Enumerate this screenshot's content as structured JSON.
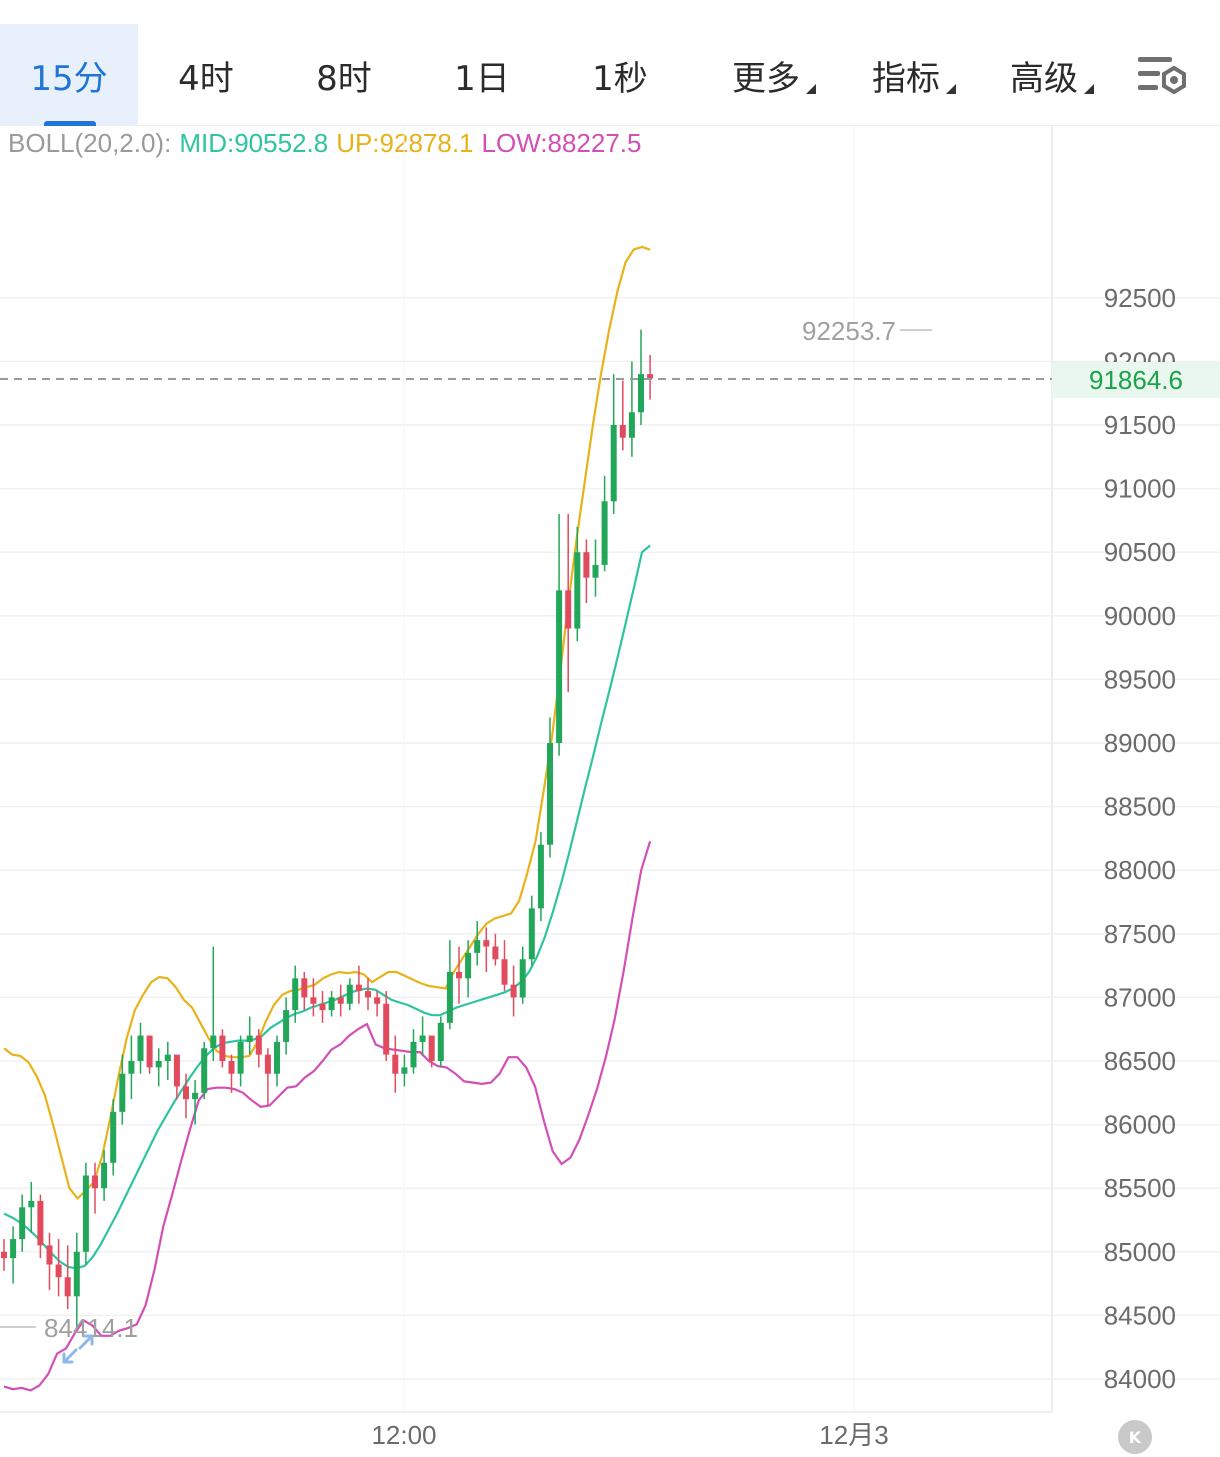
{
  "toolbar": {
    "tabs": [
      {
        "label": "15分",
        "active": true
      },
      {
        "label": "4时",
        "active": false
      },
      {
        "label": "8时",
        "active": false
      },
      {
        "label": "1日",
        "active": false
      },
      {
        "label": "1秒",
        "active": false
      },
      {
        "label": "更多",
        "active": false,
        "dropdown": true
      },
      {
        "label": "指标",
        "active": false,
        "dropdown": true
      },
      {
        "label": "高级",
        "active": false,
        "dropdown": true
      }
    ],
    "settings_icon": "chart-settings-icon"
  },
  "indicator": {
    "name": "BOLL(20,2.0):",
    "mid": "MID:90552.8",
    "up": "UP:92878.1",
    "low": "LOW:88227.5"
  },
  "current_price": "91864.6",
  "high_label": "92253.7",
  "low_label": "84414.1",
  "colors": {
    "up": "#22a65a",
    "down": "#e24a5d",
    "mid": "#2ec4a0",
    "upper": "#e8b21a",
    "lower": "#d24fb5",
    "accent": "#1f74d8"
  },
  "chart_data": {
    "type": "candlestick",
    "ylim": [
      83700,
      94000
    ],
    "y_ticks": [
      "84000",
      "84500",
      "85000",
      "85500",
      "86000",
      "86500",
      "87000",
      "87500",
      "88000",
      "88500",
      "89000",
      "89500",
      "90000",
      "90500",
      "91000",
      "91500",
      "92000",
      "92500"
    ],
    "x_ticks": [
      "12:00",
      "12月3"
    ],
    "series": [
      {
        "name": "MID",
        "values": [
          85300,
          85270,
          85230,
          85180,
          85120,
          85050,
          84980,
          84920,
          84880,
          84870,
          84890,
          84960,
          85060,
          85180,
          85300,
          85430,
          85560,
          85690,
          85820,
          85950,
          86060,
          86170,
          86270,
          86370,
          86460,
          86540,
          86600,
          86640,
          86650,
          86660,
          86660,
          86670,
          86700,
          86760,
          86800,
          86840,
          86870,
          86890,
          86920,
          86940,
          86960,
          86980,
          87010,
          87040,
          87060,
          87070,
          87060,
          87020,
          86980,
          86960,
          86940,
          86910,
          86880,
          86860,
          86860,
          86890,
          86920,
          86940,
          86960,
          86980,
          87000,
          87020,
          87040,
          87070,
          87120,
          87200,
          87320,
          87480,
          87680,
          87900,
          88140,
          88400,
          88660,
          88910,
          89170,
          89420,
          89680,
          89950,
          90220,
          90500,
          90552.8
        ]
      },
      {
        "name": "UP",
        "values": [
          86600,
          86550,
          86540,
          86490,
          86380,
          86230,
          86000,
          85750,
          85500,
          85420,
          85480,
          85550,
          85750,
          86050,
          86380,
          86680,
          86900,
          87020,
          87120,
          87160,
          87150,
          87080,
          86980,
          86920,
          86800,
          86680,
          86580,
          86540,
          86530,
          86530,
          86540,
          86650,
          86810,
          86940,
          87020,
          87050,
          87060,
          87080,
          87100,
          87150,
          87180,
          87200,
          87190,
          87200,
          87180,
          87120,
          87160,
          87200,
          87200,
          87170,
          87140,
          87110,
          87090,
          87080,
          87070,
          87200,
          87300,
          87400,
          87500,
          87580,
          87620,
          87640,
          87660,
          87760,
          87980,
          88230,
          88630,
          89050,
          89550,
          90100,
          90600,
          91050,
          91500,
          91900,
          92250,
          92550,
          92780,
          92880,
          92900,
          92878.1
        ]
      },
      {
        "name": "LOW",
        "values": [
          83940,
          83920,
          83930,
          83910,
          83950,
          84040,
          84200,
          84240,
          84360,
          84460,
          84420,
          84340,
          84340,
          84380,
          84400,
          84430,
          84580,
          84860,
          85200,
          85450,
          85710,
          85960,
          86190,
          86280,
          86290,
          86290,
          86280,
          86250,
          86190,
          86140,
          86150,
          86220,
          86290,
          86300,
          86370,
          86420,
          86500,
          86590,
          86630,
          86700,
          86750,
          86790,
          86630,
          86600,
          86590,
          86580,
          86570,
          86570,
          86500,
          86460,
          86450,
          86400,
          86340,
          86330,
          86320,
          86330,
          86400,
          86530,
          86530,
          86450,
          86300,
          86030,
          85790,
          85690,
          85740,
          85880,
          86070,
          86280,
          86530,
          86830,
          87200,
          87620,
          88000,
          88227.5
        ]
      },
      {
        "name": "candles",
        "ohlc": [
          [
            85000,
            85100,
            84850,
            84950
          ],
          [
            84950,
            85200,
            84750,
            85100
          ],
          [
            85100,
            85450,
            85000,
            85350
          ],
          [
            85350,
            85550,
            85150,
            85400
          ],
          [
            85400,
            85450,
            84950,
            85050
          ],
          [
            85050,
            85150,
            84700,
            84900
          ],
          [
            84900,
            85100,
            84650,
            84800
          ],
          [
            84800,
            85050,
            84550,
            84650
          ],
          [
            84650,
            85150,
            84400,
            85000
          ],
          [
            85000,
            85700,
            84900,
            85600
          ],
          [
            85600,
            85700,
            85300,
            85500
          ],
          [
            85500,
            85800,
            85400,
            85700
          ],
          [
            85700,
            86200,
            85600,
            86100
          ],
          [
            86100,
            86550,
            86000,
            86400
          ],
          [
            86400,
            86700,
            86200,
            86500
          ],
          [
            86500,
            86800,
            86400,
            86700
          ],
          [
            86700,
            86650,
            86400,
            86450
          ],
          [
            86450,
            86600,
            86300,
            86500
          ],
          [
            86500,
            86650,
            86350,
            86550
          ],
          [
            86550,
            86500,
            86200,
            86300
          ],
          [
            86300,
            86400,
            86050,
            86200
          ],
          [
            86200,
            86350,
            86000,
            86250
          ],
          [
            86250,
            86650,
            86200,
            86600
          ],
          [
            86600,
            87400,
            86500,
            86700
          ],
          [
            86700,
            86750,
            86450,
            86500
          ],
          [
            86500,
            86550,
            86250,
            86400
          ],
          [
            86400,
            86700,
            86300,
            86650
          ],
          [
            86650,
            86850,
            86550,
            86700
          ],
          [
            86700,
            86750,
            86450,
            86550
          ],
          [
            86550,
            86600,
            86150,
            86400
          ],
          [
            86400,
            86700,
            86300,
            86650
          ],
          [
            86650,
            87000,
            86550,
            86900
          ],
          [
            86900,
            87250,
            86800,
            87150
          ],
          [
            87150,
            87200,
            86900,
            87000
          ],
          [
            87000,
            87150,
            86850,
            86950
          ],
          [
            86950,
            87050,
            86800,
            86900
          ],
          [
            86900,
            87050,
            86850,
            87000
          ],
          [
            87000,
            87100,
            86850,
            86950
          ],
          [
            86950,
            87150,
            86900,
            87100
          ],
          [
            87100,
            87250,
            86950,
            87050
          ],
          [
            87050,
            87150,
            86900,
            87000
          ],
          [
            87000,
            87050,
            86850,
            86950
          ],
          [
            86950,
            87050,
            86500,
            86550
          ],
          [
            86550,
            86700,
            86250,
            86400
          ],
          [
            86400,
            86550,
            86300,
            86450
          ],
          [
            86450,
            86750,
            86400,
            86650
          ],
          [
            86650,
            86850,
            86550,
            86700
          ],
          [
            86700,
            86650,
            86450,
            86500
          ],
          [
            86500,
            86850,
            86450,
            86800
          ],
          [
            86800,
            87450,
            86750,
            87200
          ],
          [
            87200,
            87400,
            86950,
            87150
          ],
          [
            87150,
            87450,
            87000,
            87350
          ],
          [
            87350,
            87600,
            87250,
            87450
          ],
          [
            87450,
            87550,
            87200,
            87400
          ],
          [
            87400,
            87500,
            87250,
            87300
          ],
          [
            87300,
            87450,
            87050,
            87100
          ],
          [
            87100,
            87250,
            86850,
            87000
          ],
          [
            87000,
            87400,
            86950,
            87300
          ],
          [
            87300,
            87800,
            87250,
            87700
          ],
          [
            87700,
            88300,
            87600,
            88200
          ],
          [
            88200,
            89200,
            88100,
            89000
          ],
          [
            89000,
            90800,
            88900,
            90200
          ],
          [
            90200,
            90800,
            89400,
            89900
          ],
          [
            89900,
            90700,
            89800,
            90500
          ],
          [
            90500,
            90600,
            90100,
            90300
          ],
          [
            90300,
            90600,
            90150,
            90400
          ],
          [
            90400,
            91100,
            90350,
            90900
          ],
          [
            90900,
            91900,
            90800,
            91500
          ],
          [
            91500,
            91850,
            91300,
            91400
          ],
          [
            91400,
            92000,
            91250,
            91600
          ],
          [
            91600,
            92250,
            91500,
            91900
          ],
          [
            91900,
            92050,
            91700,
            91864.6
          ]
        ]
      }
    ]
  }
}
